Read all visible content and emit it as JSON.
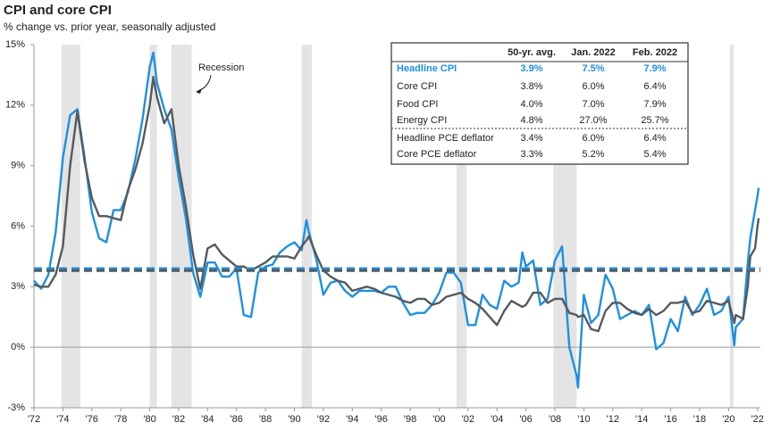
{
  "chart_data": {
    "type": "line",
    "title": "CPI and core CPI",
    "subtitle": "% change vs. prior year, seasonally adjusted",
    "annotation": "Recession",
    "x": [
      1972,
      1972.5,
      1973,
      1973.5,
      1974,
      1974.5,
      1975,
      1975.5,
      1976,
      1976.5,
      1977,
      1977.5,
      1978,
      1978.5,
      1979,
      1979.5,
      1980,
      1980.25,
      1980.5,
      1981,
      1981.5,
      1982,
      1982.5,
      1983,
      1983.5,
      1984,
      1984.5,
      1985,
      1985.5,
      1986,
      1986.5,
      1987,
      1987.5,
      1988,
      1988.5,
      1989,
      1989.5,
      1990,
      1990.5,
      1990.83,
      1991,
      1991.5,
      1992,
      1992.5,
      1993,
      1993.5,
      1994,
      1994.5,
      1995,
      1995.5,
      1996,
      1996.5,
      1997,
      1997.5,
      1998,
      1998.5,
      1999,
      1999.5,
      2000,
      2000.5,
      2001,
      2001.5,
      2002,
      2002.5,
      2003,
      2003.5,
      2004,
      2004.5,
      2005,
      2005.5,
      2005.75,
      2006,
      2006.5,
      2007,
      2007.5,
      2008,
      2008.5,
      2009,
      2009.5,
      2009.6,
      2010,
      2010.5,
      2011,
      2011.5,
      2012,
      2012.5,
      2013,
      2013.5,
      2014,
      2014.5,
      2015,
      2015.5,
      2016,
      2016.5,
      2017,
      2017.5,
      2018,
      2018.5,
      2019,
      2019.5,
      2020,
      2020.4,
      2020.5,
      2021,
      2021.33,
      2021.5,
      2021.83,
      2022,
      2022.083
    ],
    "series": [
      {
        "name": "Headline CPI",
        "color": "#1e90e0",
        "values": [
          3.3,
          2.9,
          3.6,
          5.7,
          9.4,
          11.5,
          11.8,
          9.4,
          6.7,
          5.4,
          5.2,
          6.8,
          6.8,
          7.7,
          9.3,
          11.3,
          13.9,
          14.6,
          13.1,
          11.8,
          10.8,
          8.4,
          6.4,
          3.7,
          2.5,
          4.2,
          4.2,
          3.5,
          3.5,
          3.9,
          1.6,
          1.5,
          3.7,
          4.0,
          4.1,
          4.7,
          5.0,
          5.2,
          4.8,
          6.3,
          5.7,
          4.4,
          2.6,
          3.2,
          3.3,
          2.8,
          2.5,
          2.8,
          2.8,
          2.8,
          2.7,
          3.0,
          3.0,
          2.2,
          1.6,
          1.7,
          1.7,
          2.1,
          2.7,
          3.7,
          3.7,
          3.2,
          1.1,
          1.1,
          2.6,
          2.1,
          1.9,
          3.3,
          3.0,
          3.2,
          4.7,
          4.0,
          4.3,
          2.1,
          2.4,
          4.3,
          5.0,
          0.0,
          -1.4,
          -2.0,
          2.6,
          1.2,
          1.6,
          3.6,
          2.9,
          1.4,
          1.6,
          1.8,
          1.6,
          2.1,
          -0.1,
          0.2,
          1.4,
          0.8,
          2.5,
          1.6,
          2.1,
          2.9,
          1.6,
          1.8,
          2.5,
          0.1,
          1.0,
          1.4,
          4.2,
          5.4,
          6.8,
          7.5,
          7.9
        ]
      },
      {
        "name": "Core CPI",
        "color": "#555a5f",
        "values": [
          3.1,
          3.0,
          3.0,
          3.6,
          5.0,
          9.0,
          11.7,
          9.2,
          7.4,
          6.5,
          6.5,
          6.4,
          6.3,
          7.8,
          8.8,
          10.1,
          12.0,
          13.4,
          12.4,
          11.1,
          11.8,
          9.0,
          7.0,
          4.6,
          2.9,
          4.9,
          5.1,
          4.6,
          4.3,
          4.0,
          4.0,
          3.8,
          4.0,
          4.2,
          4.5,
          4.5,
          4.5,
          4.4,
          5.0,
          5.3,
          5.5,
          4.6,
          3.8,
          3.5,
          3.3,
          3.2,
          2.8,
          2.9,
          3.0,
          2.9,
          2.7,
          2.6,
          2.5,
          2.3,
          2.2,
          2.4,
          2.4,
          2.1,
          2.2,
          2.5,
          2.6,
          2.7,
          2.4,
          2.2,
          1.9,
          1.5,
          1.1,
          1.8,
          2.3,
          2.1,
          2.0,
          2.1,
          2.7,
          2.7,
          2.2,
          2.4,
          2.4,
          1.7,
          1.6,
          1.5,
          1.6,
          0.9,
          0.8,
          1.8,
          2.2,
          2.2,
          1.9,
          1.7,
          1.6,
          1.9,
          1.6,
          1.8,
          2.2,
          2.2,
          2.3,
          1.7,
          1.8,
          2.3,
          2.2,
          2.1,
          2.3,
          1.2,
          1.6,
          1.4,
          3.0,
          4.5,
          4.9,
          6.0,
          6.4
        ]
      }
    ],
    "avg_lines": [
      3.9,
      3.8
    ],
    "recessions": [
      [
        1973.9,
        1975.2
      ],
      [
        1980.0,
        1980.5
      ],
      [
        1981.5,
        1982.9
      ],
      [
        1990.5,
        1991.2
      ],
      [
        2001.2,
        2001.9
      ],
      [
        2007.9,
        2009.5
      ],
      [
        2020.1,
        2020.35
      ]
    ],
    "xlim": [
      1972,
      2022.2
    ],
    "xticks": [
      {
        "value": 1972,
        "label": "'72"
      },
      {
        "value": 1974,
        "label": "'74"
      },
      {
        "value": 1976,
        "label": "'76"
      },
      {
        "value": 1978,
        "label": "'78"
      },
      {
        "value": 1980,
        "label": "'80"
      },
      {
        "value": 1982,
        "label": "'82"
      },
      {
        "value": 1984,
        "label": "'84"
      },
      {
        "value": 1986,
        "label": "'86"
      },
      {
        "value": 1988,
        "label": "'88"
      },
      {
        "value": 1990,
        "label": "'90"
      },
      {
        "value": 1992,
        "label": "'92"
      },
      {
        "value": 1994,
        "label": "'94"
      },
      {
        "value": 1996,
        "label": "'96"
      },
      {
        "value": 1998,
        "label": "'98"
      },
      {
        "value": 2000,
        "label": "'00"
      },
      {
        "value": 2002,
        "label": "'02"
      },
      {
        "value": 2004,
        "label": "'04"
      },
      {
        "value": 2006,
        "label": "'06"
      },
      {
        "value": 2008,
        "label": "'08"
      },
      {
        "value": 2010,
        "label": "'10"
      },
      {
        "value": 2012,
        "label": "'12"
      },
      {
        "value": 2014,
        "label": "'14"
      },
      {
        "value": 2016,
        "label": "'16"
      },
      {
        "value": 2018,
        "label": "'18"
      },
      {
        "value": 2020,
        "label": "'20"
      },
      {
        "value": 2022,
        "label": "'22"
      }
    ],
    "ylim": [
      -3,
      15
    ],
    "yticks": [
      {
        "value": -3,
        "label": "-3%"
      },
      {
        "value": 0,
        "label": "0%"
      },
      {
        "value": 3,
        "label": "3%"
      },
      {
        "value": 6,
        "label": "6%"
      },
      {
        "value": 9,
        "label": "9%"
      },
      {
        "value": 12,
        "label": "12%"
      },
      {
        "value": 15,
        "label": "15%"
      }
    ],
    "table": {
      "columns": [
        "50-yr. avg.",
        "Jan. 2022",
        "Feb. 2022"
      ],
      "rows": [
        {
          "label": "Headline CPI",
          "cells": [
            "3.9%",
            "7.5%",
            "7.9%"
          ]
        },
        {
          "label": "Core CPI",
          "cells": [
            "3.8%",
            "6.0%",
            "6.4%"
          ]
        },
        {
          "label": "Food CPI",
          "cells": [
            "4.0%",
            "7.0%",
            "7.9%"
          ]
        },
        {
          "label": "Energy CPI",
          "cells": [
            "4.8%",
            "27.0%",
            "25.7%"
          ]
        },
        {
          "label": "Headline PCE deflator",
          "cells": [
            "3.4%",
            "6.0%",
            "6.4%"
          ]
        },
        {
          "label": "Core PCE deflator",
          "cells": [
            "3.3%",
            "5.2%",
            "5.4%"
          ]
        }
      ]
    }
  }
}
